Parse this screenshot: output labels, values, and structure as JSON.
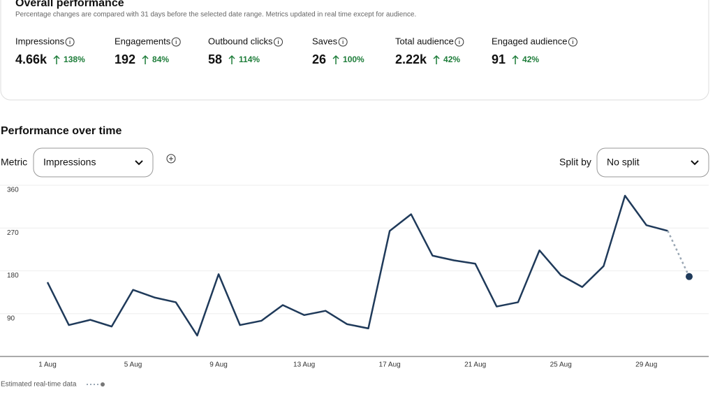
{
  "header": {
    "title": "Overall performance",
    "subtitle": "Percentage changes are compared with 31 days before the selected date range. Metrics updated in real time except for audience."
  },
  "metrics": [
    {
      "label": "Impressions",
      "value": "4.66k",
      "change": "138%"
    },
    {
      "label": "Engagements",
      "value": "192",
      "change": "84%"
    },
    {
      "label": "Outbound clicks",
      "value": "58",
      "change": "114%"
    },
    {
      "label": "Saves",
      "value": "26",
      "change": "100%"
    },
    {
      "label": "Total audience",
      "value": "2.22k",
      "change": "42%"
    },
    {
      "label": "Engaged audience",
      "value": "91",
      "change": "42%"
    }
  ],
  "section_title": "Performance over time",
  "controls": {
    "metric_label": "Metric",
    "metric_value": "Impressions",
    "split_label": "Split by",
    "split_value": "No split"
  },
  "chart_data": {
    "type": "line",
    "categories": [
      "1 Aug",
      null,
      null,
      null,
      "5 Aug",
      null,
      null,
      null,
      "9 Aug",
      null,
      null,
      null,
      "13 Aug",
      null,
      null,
      null,
      "17 Aug",
      null,
      null,
      null,
      "21 Aug",
      null,
      null,
      null,
      "25 Aug",
      null,
      null,
      null,
      "29 Aug",
      null,
      null
    ],
    "values": [
      156,
      66,
      77,
      63,
      140,
      124,
      114,
      44,
      173,
      66,
      75,
      108,
      87,
      96,
      68,
      59,
      264,
      299,
      212,
      202,
      195,
      105,
      114,
      223,
      171,
      146,
      190,
      338,
      276,
      264,
      168
    ],
    "estimated_points": 1,
    "color": "#1f3a5a",
    "estimate_color": "#9aa7b4",
    "ylim": [
      0,
      360
    ],
    "yticks": [
      90,
      180,
      270,
      360
    ],
    "grid": true,
    "legend": "Estimated real-time data"
  }
}
